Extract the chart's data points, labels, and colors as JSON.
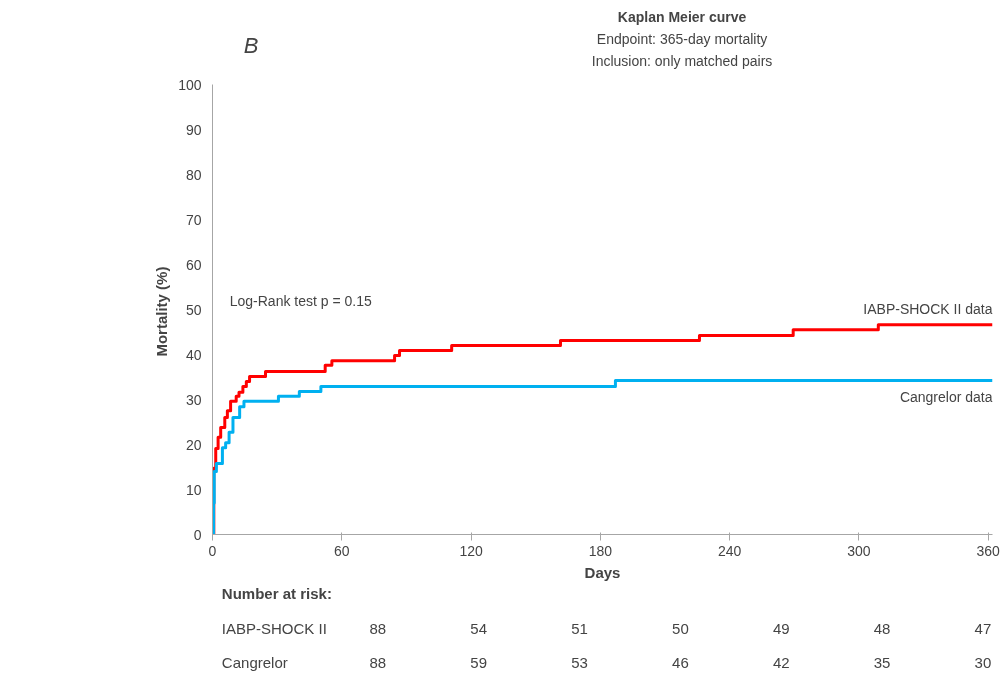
{
  "chart_data": {
    "type": "step",
    "title": "Kaplan Meier curve",
    "subtitle": "Endpoint: 365-day mortality\nInclusion: only matched pairs",
    "xlabel": "Days",
    "ylabel": "Mortality  (%)",
    "xlim": [
      0,
      362
    ],
    "xticks": [
      0,
      60,
      120,
      180,
      240,
      300,
      360
    ],
    "ylim": [
      0,
      100
    ],
    "yticks": [
      0,
      10,
      20,
      30,
      40,
      50,
      60,
      70,
      80,
      90,
      100
    ],
    "grid": false,
    "line_style": "solid",
    "marker": "none",
    "series": [
      {
        "name": "IABP-SHOCK II data",
        "color": "#ff0000",
        "x": [
          0,
          0.6,
          1.5,
          2.6,
          3.8,
          5.7,
          6.9,
          8.4,
          11,
          12.3,
          14.1,
          15.7,
          17.2,
          24.6,
          52.3,
          55.4,
          84.5,
          86.8,
          111,
          161.5,
          226,
          269.5,
          309,
          362
        ],
        "values": [
          0,
          14.7,
          19.1,
          21.6,
          23.8,
          26,
          27.5,
          29.6,
          30.7,
          31.6,
          32.9,
          34,
          35.1,
          36.2,
          37.6,
          38.6,
          39.8,
          40.9,
          42,
          43.1,
          44.2,
          45.5,
          46.6,
          46.6
        ]
      },
      {
        "name": "Cangrelor data",
        "color": "#00b0f0",
        "x": [
          0,
          0.5,
          0.8,
          1.8,
          4.6,
          6.1,
          7.7,
          9.5,
          12.6,
          14.6,
          30.6,
          40.3,
          50.3,
          187,
          362
        ],
        "values": [
          0,
          7,
          14,
          15.8,
          19.3,
          20.4,
          22.7,
          26,
          28.4,
          29.6,
          30.7,
          31.8,
          32.9,
          34.2,
          34.2
        ]
      }
    ],
    "annotations": [
      "B",
      "Log-Rank test p = 0.15",
      "Number at risk:",
      "IABP-SHOCK II",
      "88",
      "54",
      "51",
      "50",
      "49",
      "48",
      "47",
      "Cangrelor",
      "88",
      "59",
      "53",
      "46",
      "42",
      "35",
      "30"
    ]
  }
}
